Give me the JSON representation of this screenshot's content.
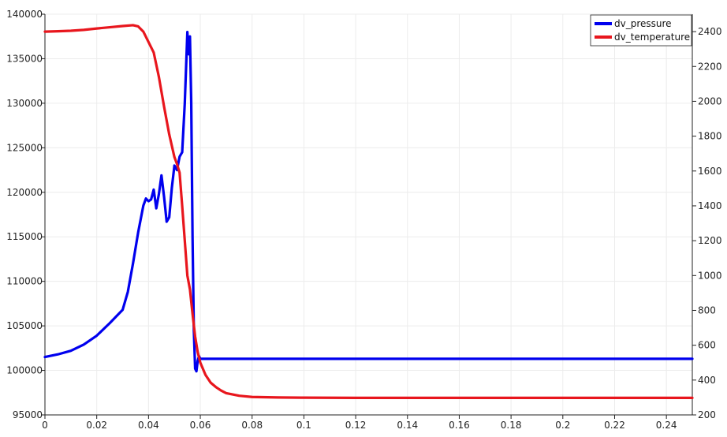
{
  "chart_data": {
    "type": "line",
    "grid": true,
    "legend_placement": "top-right",
    "x_axis": {
      "range": [
        0,
        0.25
      ],
      "ticks": [
        0,
        0.02,
        0.04,
        0.06,
        0.08,
        0.1,
        0.12,
        0.14,
        0.16,
        0.18,
        0.2,
        0.22,
        0.24
      ],
      "tick_labels": [
        "0",
        "0.02",
        "0.04",
        "0.06",
        "0.08",
        "0.1",
        "0.12",
        "0.14",
        "0.16",
        "0.18",
        "0.2",
        "0.22",
        "0.24"
      ]
    },
    "y_left": {
      "range": [
        95000,
        140000
      ],
      "ticks": [
        95000,
        100000,
        105000,
        110000,
        115000,
        120000,
        125000,
        130000,
        135000,
        140000
      ],
      "tick_labels": [
        "95000",
        "100000",
        "105000",
        "110000",
        "115000",
        "120000",
        "125000",
        "130000",
        "135000",
        "140000"
      ]
    },
    "y_right": {
      "range": [
        200,
        2500
      ],
      "ticks": [
        200,
        400,
        600,
        800,
        1000,
        1200,
        1400,
        1600,
        1800,
        2000,
        2200,
        2400
      ],
      "tick_labels": [
        "200",
        "400",
        "600",
        "800",
        "1000",
        "1200",
        "1400",
        "1600",
        "1800",
        "2000",
        "2200",
        "2400"
      ]
    },
    "series": [
      {
        "name": "dv_pressure",
        "axis": "left",
        "color": "#0000ee",
        "x": [
          0,
          0.005,
          0.01,
          0.015,
          0.02,
          0.025,
          0.03,
          0.032,
          0.034,
          0.036,
          0.038,
          0.039,
          0.04,
          0.041,
          0.042,
          0.043,
          0.044,
          0.045,
          0.046,
          0.047,
          0.048,
          0.049,
          0.05,
          0.051,
          0.052,
          0.053,
          0.054,
          0.055,
          0.0555,
          0.056,
          0.0565,
          0.057,
          0.0575,
          0.058,
          0.0585,
          0.059,
          0.0595,
          0.06,
          0.062,
          0.065,
          0.07,
          0.08,
          0.1,
          0.15,
          0.2,
          0.25
        ],
        "y": [
          101500,
          101800,
          102200,
          102900,
          103900,
          105300,
          106800,
          108800,
          112000,
          115500,
          118500,
          119300,
          119000,
          119200,
          120300,
          118200,
          119800,
          121900,
          119500,
          116700,
          117200,
          120500,
          123000,
          122500,
          124000,
          124500,
          130000,
          138000,
          135500,
          137500,
          130000,
          115000,
          104500,
          100200,
          99900,
          101100,
          101600,
          101300,
          101300,
          101300,
          101300,
          101300,
          101300,
          101300,
          101300,
          101300
        ]
      },
      {
        "name": "dv_temperature",
        "axis": "right",
        "color": "#e8161d",
        "x": [
          0,
          0.005,
          0.01,
          0.015,
          0.02,
          0.025,
          0.03,
          0.034,
          0.036,
          0.038,
          0.04,
          0.042,
          0.044,
          0.046,
          0.048,
          0.05,
          0.051,
          0.052,
          0.053,
          0.054,
          0.055,
          0.056,
          0.057,
          0.058,
          0.059,
          0.06,
          0.062,
          0.064,
          0.066,
          0.068,
          0.07,
          0.075,
          0.08,
          0.09,
          0.1,
          0.12,
          0.15,
          0.2,
          0.25
        ],
        "y": [
          2400,
          2402,
          2405,
          2410,
          2418,
          2425,
          2432,
          2437,
          2430,
          2400,
          2340,
          2280,
          2140,
          1970,
          1810,
          1680,
          1640,
          1590,
          1400,
          1200,
          1000,
          920,
          780,
          650,
          560,
          500,
          430,
          385,
          360,
          340,
          325,
          310,
          303,
          300,
          299,
          298,
          298,
          298,
          298
        ]
      }
    ]
  }
}
